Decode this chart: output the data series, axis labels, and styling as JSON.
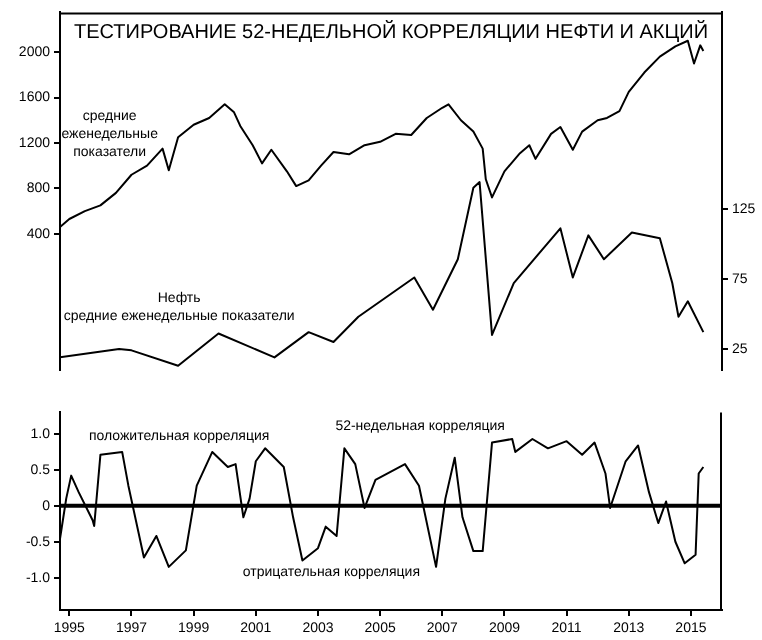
{
  "chart_data": [
    {
      "type": "line",
      "title": "ТЕСТИРОВАНИЕ 52-НЕДЕЛЬНОЙ КОРРЕЛЯЦИИ НЕФТИ И АКЦИЙ",
      "xlim": [
        1994.7,
        2016.0
      ],
      "ylim": [
        -800,
        2350
      ],
      "yticks": [
        400,
        800,
        1200,
        1600,
        2000
      ],
      "y2lim": [
        10,
        265
      ],
      "y2ticks": [
        25,
        75,
        125
      ],
      "tick_labels": "y",
      "marker": "none",
      "line_style": "solid",
      "series": [
        {
          "color": "#000000",
          "axis": "y",
          "x": [
            1994.7,
            1995.0,
            1995.5,
            1996.0,
            1996.5,
            1997.0,
            1997.5,
            1998.0,
            1998.2,
            1998.5,
            1999.0,
            1999.5,
            2000.0,
            2000.3,
            2000.5,
            2000.9,
            2001.2,
            2001.5,
            2002.0,
            2002.3,
            2002.7,
            2003.1,
            2003.5,
            2004.0,
            2004.5,
            2005.0,
            2005.5,
            2006.0,
            2006.5,
            2007.0,
            2007.2,
            2007.6,
            2008.0,
            2008.3,
            2008.4,
            2008.6,
            2009.0,
            2009.5,
            2009.8,
            2010.0,
            2010.5,
            2010.8,
            2011.2,
            2011.5,
            2012.0,
            2012.3,
            2012.7,
            2013.0,
            2013.5,
            2014.0,
            2014.5,
            2014.9,
            2015.1,
            2015.3,
            2015.4
          ],
          "values": [
            460,
            530,
            600,
            650,
            760,
            920,
            1000,
            1150,
            960,
            1250,
            1360,
            1420,
            1540,
            1470,
            1350,
            1180,
            1020,
            1140,
            950,
            820,
            870,
            1000,
            1120,
            1100,
            1180,
            1210,
            1280,
            1270,
            1420,
            1510,
            1540,
            1400,
            1300,
            1150,
            880,
            720,
            950,
            1110,
            1180,
            1060,
            1280,
            1340,
            1140,
            1300,
            1400,
            1420,
            1480,
            1650,
            1820,
            1960,
            2050,
            2100,
            1900,
            2060,
            2010
          ]
        },
        {
          "color": "#000000",
          "axis": "y2",
          "x": [
            1994.7,
            1996.6,
            1997.0,
            1998.5,
            1999.8,
            2001.6,
            2002.7,
            2003.5,
            2004.3,
            2006.1,
            2006.7,
            2007.5,
            2008.0,
            2008.2,
            2008.6,
            2009.3,
            2010.8,
            2011.2,
            2011.7,
            2012.2,
            2013.1,
            2014.0,
            2014.4,
            2014.6,
            2014.9,
            2015.4
          ],
          "values": [
            19,
            25,
            24,
            13,
            36,
            19,
            37,
            30,
            48,
            76,
            53,
            89,
            140,
            144,
            35,
            72,
            111,
            76,
            106,
            89,
            108,
            104,
            72,
            48,
            59,
            37
          ]
        }
      ],
      "annotations": [
        "средние еженедельные показатели",
        "Нефть",
        "средние еженедельные показатели"
      ]
    },
    {
      "type": "line",
      "xlim": [
        1994.7,
        2016.0
      ],
      "xticks": [
        1995,
        1997,
        1999,
        2001,
        2003,
        2005,
        2007,
        2009,
        2011,
        2013,
        2015
      ],
      "ylim": [
        -1.45,
        1.3
      ],
      "yticks": [
        {
          "value": -1,
          "label": "-1.0"
        },
        -0.5,
        0,
        0.5,
        {
          "value": 1,
          "label": "1.0"
        }
      ],
      "marker": "none",
      "line_style": "solid",
      "series": [
        {
          "color": "#000000",
          "x": [
            1994.7,
            1994.9,
            1995.06,
            1995.3,
            1995.75,
            1995.8,
            1996.0,
            1996.7,
            1996.9,
            1997.4,
            1997.8,
            1998.2,
            1998.75,
            1999.1,
            1999.6,
            2000.1,
            2000.35,
            2000.6,
            2000.8,
            2001.0,
            2001.3,
            2001.9,
            2002.2,
            2002.5,
            2003.0,
            2003.25,
            2003.6,
            2003.85,
            2004.2,
            2004.5,
            2004.85,
            2005.8,
            2006.25,
            2006.8,
            2007.1,
            2007.4,
            2007.65,
            2008.0,
            2008.3,
            2008.6,
            2009.25,
            2009.35,
            2009.9,
            2010.4,
            2011.0,
            2011.5,
            2011.9,
            2012.25,
            2012.4,
            2012.9,
            2013.3,
            2013.65,
            2013.95,
            2014.2,
            2014.5,
            2014.8,
            2015.15,
            2015.25,
            2015.4
          ],
          "values": [
            -0.46,
            0.1,
            0.42,
            0.19,
            -0.2,
            -0.28,
            0.71,
            0.75,
            0.28,
            -0.72,
            -0.42,
            -0.85,
            -0.62,
            0.28,
            0.75,
            0.54,
            0.58,
            -0.16,
            0.1,
            0.62,
            0.8,
            0.54,
            -0.16,
            -0.76,
            -0.59,
            -0.29,
            -0.42,
            0.8,
            0.58,
            -0.03,
            0.36,
            0.58,
            0.28,
            -0.85,
            0.1,
            0.67,
            -0.16,
            -0.63,
            -0.63,
            0.88,
            0.93,
            0.75,
            0.93,
            0.8,
            0.9,
            0.71,
            0.88,
            0.45,
            -0.03,
            0.62,
            0.84,
            0.19,
            -0.24,
            0.06,
            -0.5,
            -0.8,
            -0.68,
            0.45,
            0.54
          ]
        }
      ],
      "ref_lines": [
        {
          "axis": "y",
          "value": 0,
          "color": "#000000"
        }
      ],
      "annotations": [
        "52-недельная корреляция",
        "положительная корреляция",
        "отрицательная корреляция"
      ]
    }
  ]
}
